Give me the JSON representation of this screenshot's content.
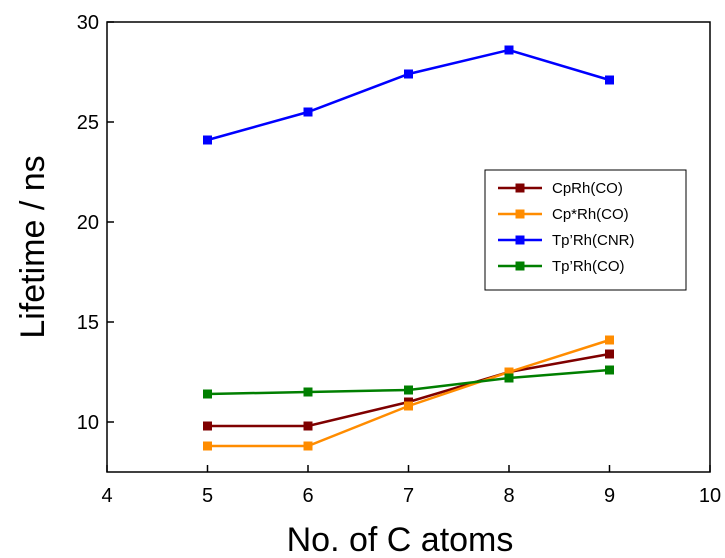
{
  "chart_data": {
    "type": "line",
    "title": "",
    "xlabel": "No. of C atoms",
    "ylabel": "Lifetime / ns",
    "xlim": [
      4,
      10
    ],
    "ylim": [
      7.5,
      30
    ],
    "xticks": [
      4,
      5,
      6,
      7,
      8,
      9,
      10
    ],
    "yticks": [
      10,
      15,
      20,
      25,
      30
    ],
    "grid": false,
    "legend_position": "right",
    "x": [
      5,
      6,
      7,
      8,
      9
    ],
    "series": [
      {
        "name": "CpRh(CO)",
        "color": "#7f0000",
        "values": [
          9.8,
          9.8,
          11.0,
          12.5,
          13.4
        ]
      },
      {
        "name": "Cp*Rh(CO)",
        "color": "#ff8c00",
        "values": [
          8.8,
          8.8,
          10.8,
          12.5,
          14.1
        ]
      },
      {
        "name": "Tp’Rh(CNR)",
        "color": "#0000ff",
        "values": [
          24.1,
          25.5,
          27.4,
          28.6,
          27.1
        ]
      },
      {
        "name": "Tp’Rh(CO)",
        "color": "#007f00",
        "values": [
          11.4,
          11.5,
          11.6,
          12.2,
          12.6
        ]
      }
    ]
  }
}
